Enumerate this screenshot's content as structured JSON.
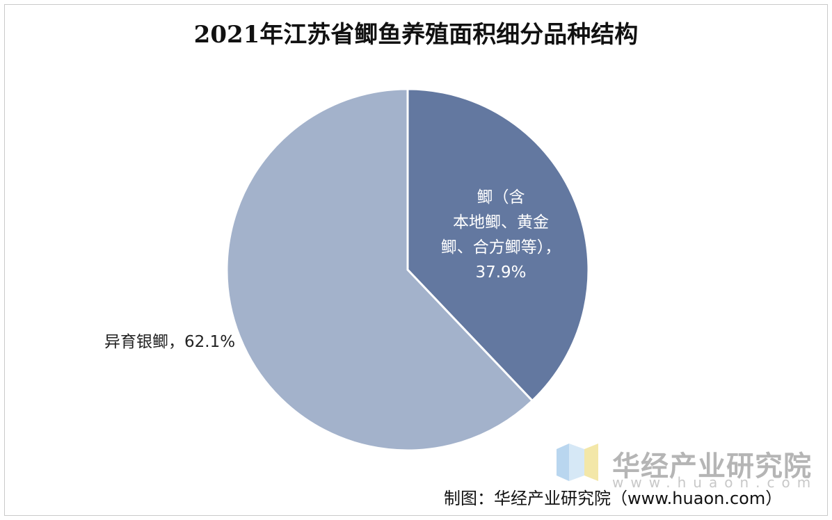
{
  "chart_data": {
    "type": "pie",
    "title": "2021年江苏省鲫鱼养殖面积细分品种结构",
    "slices": [
      {
        "label_lines": [
          "鲫（含",
          "本地鲫、黄金",
          "鲫、合方鲫等），",
          "37.9%"
        ],
        "value": 37.9,
        "color": "#6378a0"
      },
      {
        "label_lines": [
          "异育银鲫，62.1%"
        ],
        "value": 62.1,
        "color": "#a3b2cb"
      }
    ]
  },
  "watermark": {
    "name": "华经产业研究院",
    "url": "www.huaon.com"
  },
  "source": "制图：华经产业研究院（www.huaon.com）"
}
